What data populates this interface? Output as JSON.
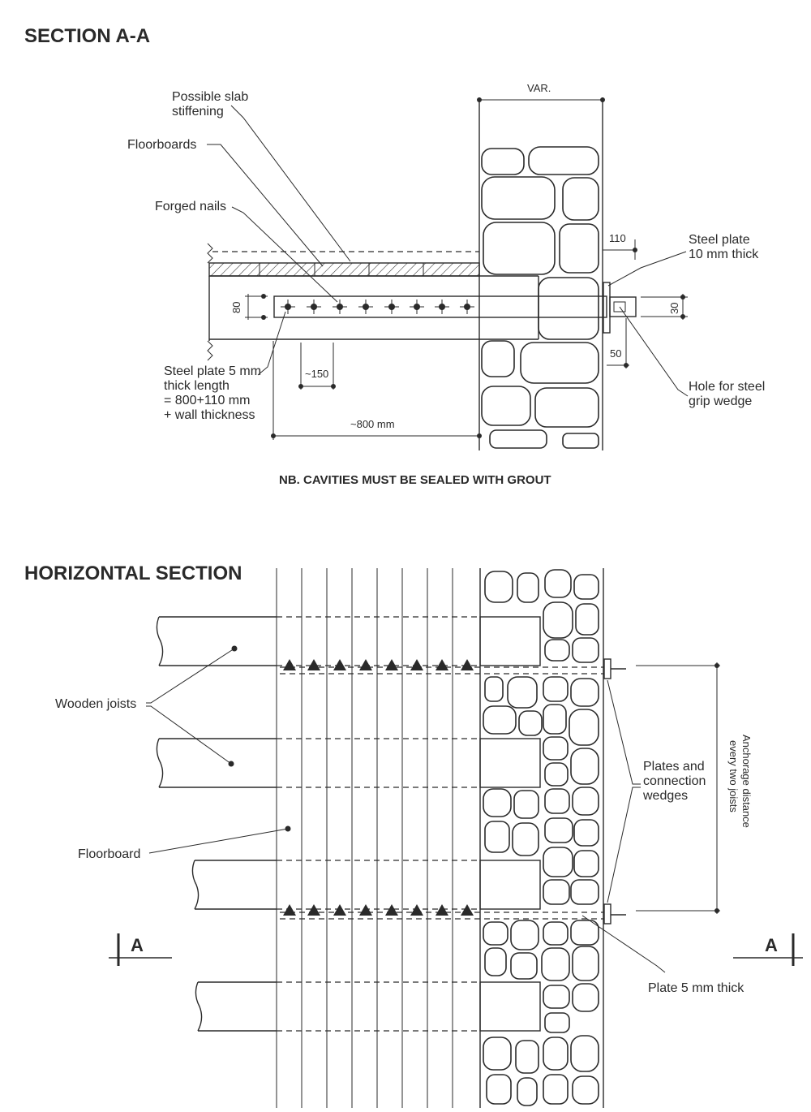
{
  "section_aa": {
    "title": "SECTION A-A",
    "labels": {
      "slab_stiffening_1": "Possible slab",
      "slab_stiffening_2": "stiffening",
      "floorboards": "Floorboards",
      "forged_nails": "Forged nails",
      "steel_plate_1": "Steel plate 5 mm",
      "steel_plate_2": "thick length",
      "steel_plate_3": "= 800+110 mm",
      "steel_plate_4": "+ wall thickness",
      "steel_plate_10_1": "Steel plate",
      "steel_plate_10_2": "10 mm thick",
      "hole_1": "Hole for steel",
      "hole_2": "grip wedge"
    },
    "dimensions": {
      "var": "VAR.",
      "d110": "110",
      "d80": "80",
      "d30": "30",
      "d50": "50",
      "d150": "~150",
      "d800": "~800 mm"
    },
    "note": "NB. CAVITIES MUST BE SEALED WITH GROUT"
  },
  "horizontal_section": {
    "title": "HORIZONTAL SECTION",
    "labels": {
      "wooden_joists": "Wooden joists",
      "floorboard": "Floorboard",
      "plates_1": "Plates and",
      "plates_2": "connection",
      "plates_3": "wedges",
      "anchorage_1": "Anchorage distance",
      "anchorage_2": "every two joists",
      "plate_5mm": "Plate 5 mm thick",
      "cut_left": "A",
      "cut_right": "A"
    }
  }
}
